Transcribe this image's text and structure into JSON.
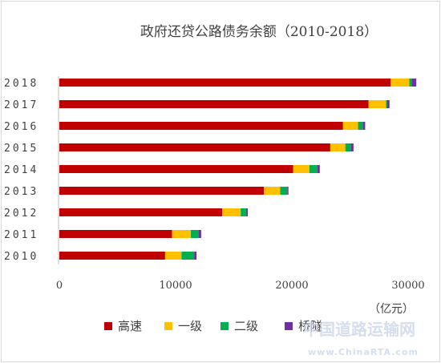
{
  "chart_data": {
    "type": "bar",
    "orientation": "horizontal",
    "stacked": true,
    "title": "政府还贷公路债务余额（2010-2018）",
    "categories": [
      "2010",
      "2011",
      "2012",
      "2013",
      "2014",
      "2015",
      "2016",
      "2017",
      "2018"
    ],
    "series": [
      {
        "name": "高速",
        "color": "#c00000",
        "values": [
          9100,
          9700,
          14000,
          17600,
          20100,
          23300,
          24400,
          26600,
          28500
        ]
      },
      {
        "name": "一级",
        "color": "#ffc000",
        "values": [
          1400,
          1600,
          1600,
          1400,
          1400,
          1300,
          1300,
          1500,
          1600
        ]
      },
      {
        "name": "二级",
        "color": "#00b050",
        "values": [
          1100,
          700,
          500,
          600,
          700,
          500,
          400,
          100,
          200
        ]
      },
      {
        "name": "桥隧",
        "color": "#7030a0",
        "values": [
          200,
          200,
          100,
          100,
          200,
          200,
          200,
          200,
          400
        ]
      }
    ],
    "xlim": [
      0,
      32000
    ],
    "xticks": [
      0,
      10000,
      20000,
      30000
    ],
    "xlabel": "",
    "ylabel": "",
    "unit_label": "（亿元）",
    "legend_position": "bottom",
    "grid": false
  },
  "watermark": {
    "text": "中国道路运输网",
    "url_text": "www.ChinaRTA.com"
  }
}
